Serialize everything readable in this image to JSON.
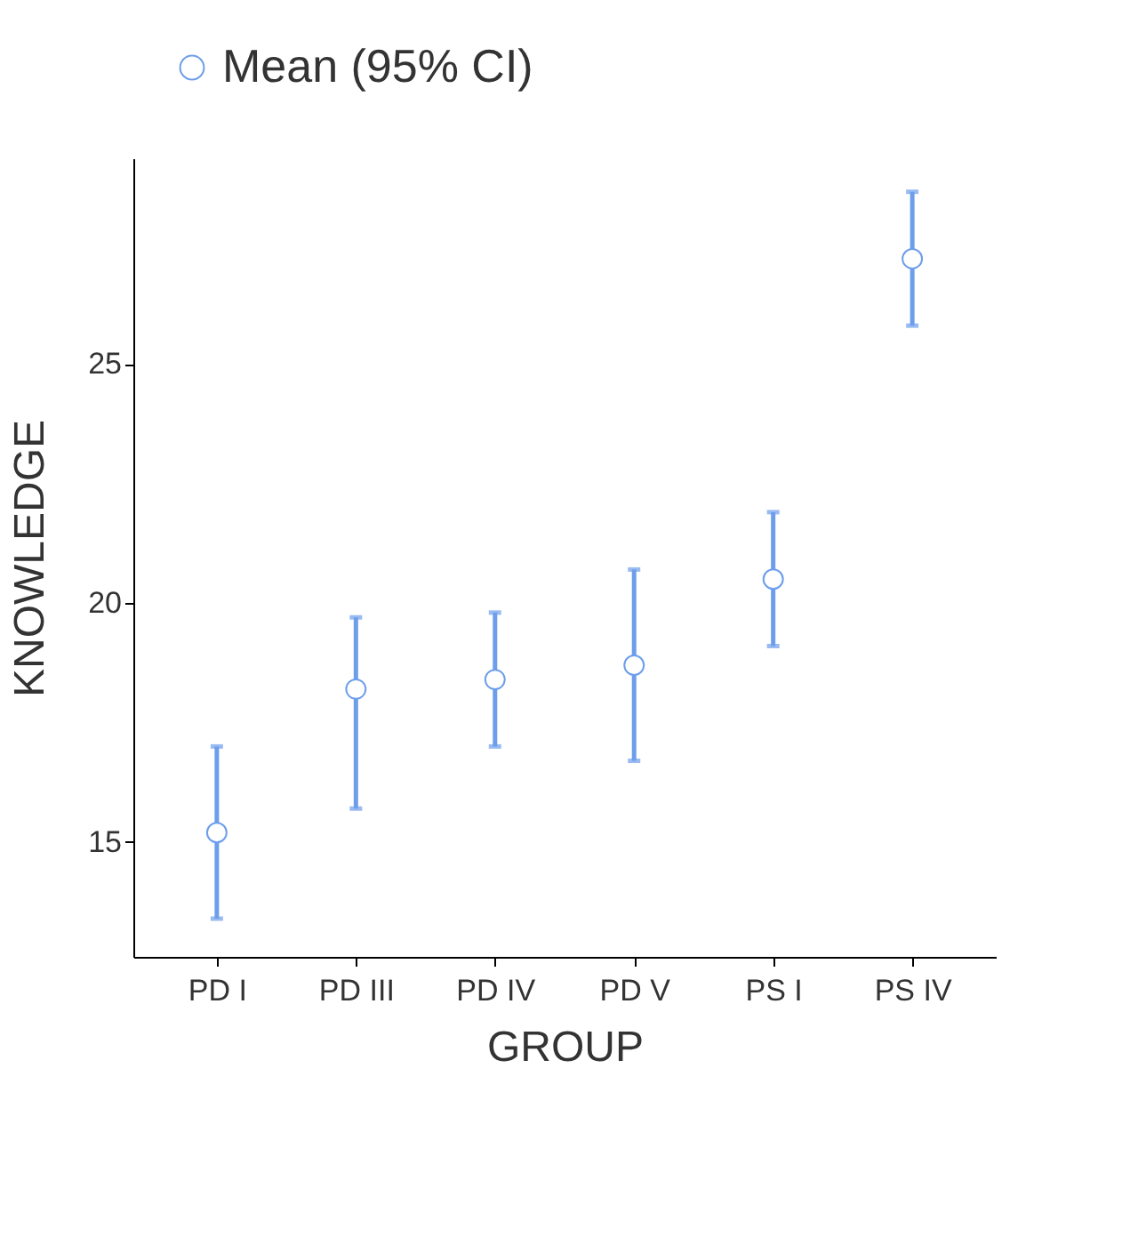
{
  "chart_data": {
    "type": "scatter",
    "xlabel": "GROUP",
    "ylabel": "KNOWLEDGE",
    "categories": [
      "PD I",
      "PD III",
      "PD IV",
      "PD V",
      "PS I",
      "PS IV"
    ],
    "series": [
      {
        "name": "Mean (95% CI)",
        "color": "#6d9eeb",
        "values": [
          15.2,
          18.2,
          18.4,
          18.7,
          20.5,
          27.2
        ],
        "errors": [
          [
            13.4,
            17.0
          ],
          [
            15.7,
            19.7
          ],
          [
            17.0,
            19.8
          ],
          [
            16.7,
            20.7
          ],
          [
            19.1,
            21.9
          ],
          [
            25.8,
            28.6
          ]
        ]
      }
    ],
    "ylim": [
      12.6,
      29.3
    ],
    "yticks": [
      15,
      20,
      25
    ],
    "grid": false,
    "legend": "top",
    "marker": "circle"
  }
}
